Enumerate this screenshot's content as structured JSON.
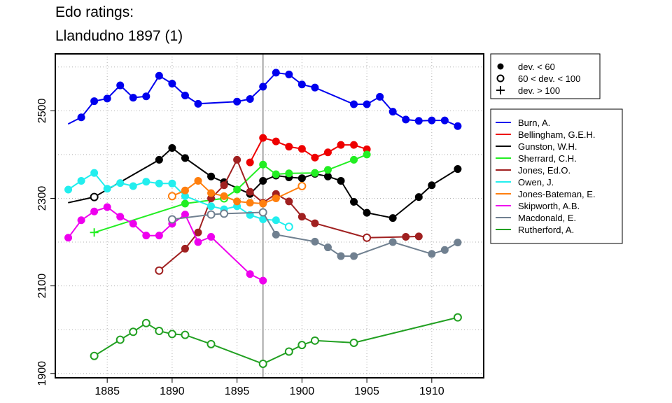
{
  "chart_data": {
    "type": "line",
    "title": [
      "Edo ratings:",
      "Llandudno 1897 (1)"
    ],
    "xlabel": "",
    "ylabel": "",
    "xlim": [
      1881,
      1914
    ],
    "ylim": [
      1890,
      2630
    ],
    "x_ticks": [
      1885,
      1890,
      1895,
      1900,
      1905,
      1910
    ],
    "y_ticks": [
      1900,
      2100,
      2300,
      2500
    ],
    "grid": true,
    "reference_line_x": 1897,
    "marker_legend": [
      {
        "symbol": "filled-circle",
        "label": "dev. < 60"
      },
      {
        "symbol": "open-circle",
        "label": "60 < dev. < 100"
      },
      {
        "symbol": "plus",
        "label": "dev. > 100"
      }
    ],
    "series": [
      {
        "name": "Burn, A.",
        "color": "#0000ee",
        "points": [
          [
            1882,
            2470,
            "p"
          ],
          [
            1883,
            2485,
            "f"
          ],
          [
            1884,
            2522,
            "f"
          ],
          [
            1885,
            2528,
            "f"
          ],
          [
            1886,
            2558,
            "f"
          ],
          [
            1887,
            2530,
            "f"
          ],
          [
            1888,
            2533,
            "f"
          ],
          [
            1889,
            2580,
            "f"
          ],
          [
            1890,
            2562,
            "f"
          ],
          [
            1891,
            2535,
            "f"
          ],
          [
            1892,
            2516,
            "f"
          ],
          [
            1895,
            2521,
            "f"
          ],
          [
            1896,
            2527,
            "f"
          ],
          [
            1897,
            2555,
            "f"
          ],
          [
            1898,
            2587,
            "f"
          ],
          [
            1899,
            2583,
            "f"
          ],
          [
            1900,
            2560,
            "f"
          ],
          [
            1901,
            2553,
            "f"
          ],
          [
            1904,
            2515,
            "f"
          ],
          [
            1905,
            2515,
            "f"
          ],
          [
            1906,
            2532,
            "f"
          ],
          [
            1907,
            2498,
            "f"
          ],
          [
            1908,
            2480,
            "f"
          ],
          [
            1909,
            2477,
            "f"
          ],
          [
            1910,
            2478,
            "f"
          ],
          [
            1911,
            2478,
            "f"
          ],
          [
            1912,
            2465,
            "f"
          ]
        ]
      },
      {
        "name": "Bellingham, G.E.H.",
        "color": "#ee0000",
        "points": [
          [
            1896,
            2382,
            "f"
          ],
          [
            1897,
            2438,
            "f"
          ],
          [
            1898,
            2430,
            "f"
          ],
          [
            1899,
            2418,
            "f"
          ],
          [
            1900,
            2413,
            "f"
          ],
          [
            1901,
            2393,
            "f"
          ],
          [
            1902,
            2405,
            "f"
          ],
          [
            1903,
            2422,
            "f"
          ],
          [
            1904,
            2422,
            "f"
          ],
          [
            1905,
            2412,
            "f"
          ]
        ]
      },
      {
        "name": "Gunston, W.H.",
        "color": "#000000",
        "points": [
          [
            1882,
            2290,
            "p"
          ],
          [
            1884,
            2303,
            "o"
          ],
          [
            1889,
            2388,
            "f"
          ],
          [
            1890,
            2415,
            "f"
          ],
          [
            1891,
            2392,
            "f"
          ],
          [
            1893,
            2350,
            "f"
          ],
          [
            1894,
            2337,
            "f"
          ],
          [
            1896,
            2310,
            "f"
          ],
          [
            1897,
            2340,
            "f"
          ],
          [
            1898,
            2352,
            "f"
          ],
          [
            1899,
            2348,
            "f"
          ],
          [
            1900,
            2346,
            "f"
          ],
          [
            1901,
            2356,
            "f"
          ],
          [
            1902,
            2350,
            "f"
          ],
          [
            1903,
            2340,
            "f"
          ],
          [
            1904,
            2292,
            "f"
          ],
          [
            1905,
            2267,
            "f"
          ],
          [
            1907,
            2255,
            "f"
          ],
          [
            1909,
            2303,
            "f"
          ],
          [
            1910,
            2330,
            "f"
          ],
          [
            1912,
            2367,
            "f"
          ]
        ]
      },
      {
        "name": "Sherrard, C.H.",
        "color": "#22ee22",
        "points": [
          [
            1884,
            2222,
            "+"
          ],
          [
            1891,
            2288,
            "f"
          ],
          [
            1894,
            2300,
            "o"
          ],
          [
            1895,
            2320,
            "f"
          ],
          [
            1897,
            2377,
            "f"
          ],
          [
            1898,
            2355,
            "f"
          ],
          [
            1899,
            2357,
            "f"
          ],
          [
            1901,
            2358,
            "f"
          ],
          [
            1902,
            2365,
            "f"
          ],
          [
            1904,
            2388,
            "f"
          ],
          [
            1905,
            2400,
            "f"
          ]
        ]
      },
      {
        "name": "Jones, Ed.O.",
        "color": "#a02020",
        "points": [
          [
            1889,
            2135,
            "o"
          ],
          [
            1891,
            2185,
            "f"
          ],
          [
            1892,
            2222,
            "f"
          ],
          [
            1893,
            2300,
            "f"
          ],
          [
            1894,
            2330,
            "f"
          ],
          [
            1895,
            2388,
            "f"
          ],
          [
            1896,
            2315,
            "f"
          ],
          [
            1897,
            2290,
            "f"
          ],
          [
            1898,
            2310,
            "f"
          ],
          [
            1899,
            2293,
            "f"
          ],
          [
            1900,
            2258,
            "f"
          ],
          [
            1901,
            2243,
            "f"
          ],
          [
            1905,
            2210,
            "o"
          ],
          [
            1908,
            2212,
            "f"
          ],
          [
            1909,
            2213,
            "f"
          ]
        ]
      },
      {
        "name": "Owen, J.",
        "color": "#22eeee",
        "points": [
          [
            1882,
            2320,
            "f"
          ],
          [
            1883,
            2340,
            "f"
          ],
          [
            1884,
            2358,
            "f"
          ],
          [
            1885,
            2322,
            "f"
          ],
          [
            1886,
            2335,
            "f"
          ],
          [
            1887,
            2328,
            "f"
          ],
          [
            1888,
            2338,
            "f"
          ],
          [
            1889,
            2334,
            "f"
          ],
          [
            1890,
            2334,
            "f"
          ],
          [
            1891,
            2305,
            "f"
          ],
          [
            1893,
            2282,
            "f"
          ],
          [
            1894,
            2275,
            "f"
          ],
          [
            1895,
            2282,
            "f"
          ],
          [
            1896,
            2262,
            "f"
          ],
          [
            1897,
            2252,
            "f"
          ],
          [
            1898,
            2250,
            "f"
          ],
          [
            1899,
            2235,
            "o"
          ]
        ]
      },
      {
        "name": "Jones-Bateman, E.",
        "color": "#ff7f0e",
        "points": [
          [
            1890,
            2305,
            "o"
          ],
          [
            1891,
            2318,
            "f"
          ],
          [
            1892,
            2340,
            "f"
          ],
          [
            1893,
            2312,
            "f"
          ],
          [
            1894,
            2305,
            "f"
          ],
          [
            1895,
            2293,
            "f"
          ],
          [
            1896,
            2290,
            "f"
          ],
          [
            1897,
            2288,
            "f"
          ],
          [
            1898,
            2300,
            "f"
          ],
          [
            1900,
            2328,
            "o"
          ]
        ]
      },
      {
        "name": "Skipworth, A.B.",
        "color": "#ee00ee",
        "points": [
          [
            1882,
            2210,
            "f"
          ],
          [
            1883,
            2250,
            "f"
          ],
          [
            1884,
            2270,
            "f"
          ],
          [
            1885,
            2280,
            "f"
          ],
          [
            1886,
            2258,
            "f"
          ],
          [
            1887,
            2242,
            "f"
          ],
          [
            1888,
            2215,
            "f"
          ],
          [
            1889,
            2215,
            "f"
          ],
          [
            1890,
            2242,
            "f"
          ],
          [
            1891,
            2263,
            "f"
          ],
          [
            1892,
            2200,
            "f"
          ],
          [
            1893,
            2212,
            "f"
          ],
          [
            1896,
            2127,
            "f"
          ],
          [
            1897,
            2112,
            "f"
          ]
        ]
      },
      {
        "name": "Macdonald, E.",
        "color": "#708090",
        "points": [
          [
            1890,
            2252,
            "o"
          ],
          [
            1893,
            2263,
            "o"
          ],
          [
            1894,
            2265,
            "o"
          ],
          [
            1897,
            2268,
            "o"
          ],
          [
            1898,
            2217,
            "f"
          ],
          [
            1901,
            2201,
            "f"
          ],
          [
            1902,
            2188,
            "f"
          ],
          [
            1903,
            2168,
            "f"
          ],
          [
            1904,
            2168,
            "f"
          ],
          [
            1907,
            2200,
            "f"
          ],
          [
            1910,
            2173,
            "f"
          ],
          [
            1911,
            2182,
            "f"
          ],
          [
            1912,
            2199,
            "f"
          ]
        ]
      },
      {
        "name": "Rutherford, A.",
        "color": "#22a022",
        "points": [
          [
            1884,
            1940,
            "o"
          ],
          [
            1886,
            1977,
            "o"
          ],
          [
            1887,
            1995,
            "o"
          ],
          [
            1888,
            2015,
            "o"
          ],
          [
            1889,
            1997,
            "o"
          ],
          [
            1890,
            1990,
            "o"
          ],
          [
            1891,
            1988,
            "o"
          ],
          [
            1893,
            1967,
            "o"
          ],
          [
            1897,
            1922,
            "o"
          ],
          [
            1899,
            1950,
            "o"
          ],
          [
            1900,
            1965,
            "o"
          ],
          [
            1901,
            1975,
            "o"
          ],
          [
            1904,
            1970,
            "o"
          ],
          [
            1912,
            2028,
            "o"
          ]
        ]
      }
    ]
  }
}
